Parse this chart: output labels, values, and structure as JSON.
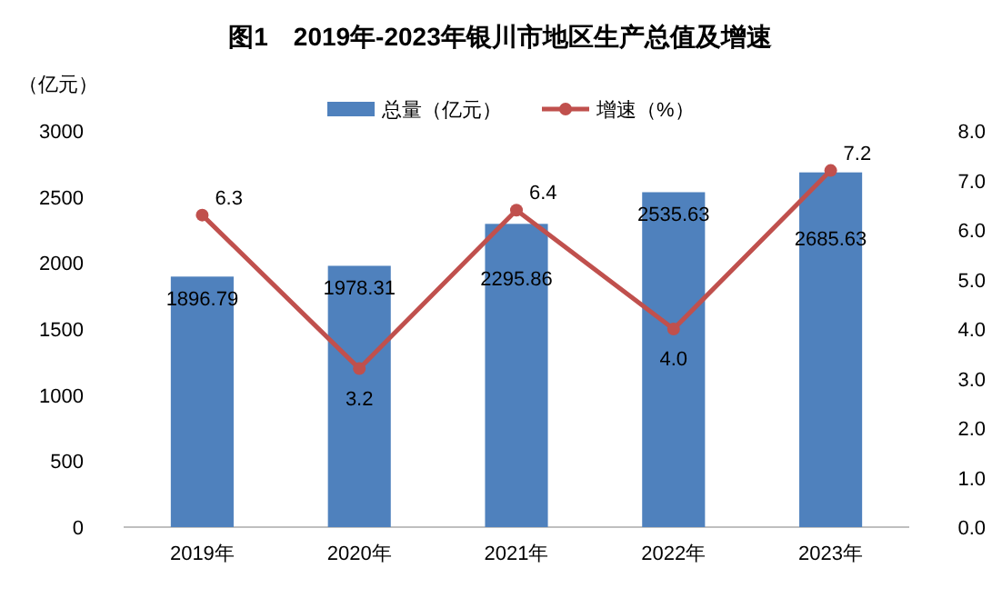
{
  "chart_data": {
    "type": "bar",
    "title": "图1　2019年-2023年银川市地区生产总值及增速",
    "ylabel": "（亿元）",
    "categories": [
      "2019年",
      "2020年",
      "2021年",
      "2022年",
      "2023年"
    ],
    "series": [
      {
        "name": "总量（亿元）",
        "color": "#4f81bd",
        "values": [
          1896.79,
          1978.31,
          2295.86,
          2535.63,
          2685.63
        ]
      },
      {
        "name": "增速（%）",
        "type": "line",
        "axis": "y2",
        "color": "#c0504d",
        "marker": "circle",
        "values": [
          6.3,
          3.2,
          6.4,
          4.0,
          7.2
        ],
        "value_labels": [
          "6.3",
          "3.2",
          "6.4",
          "4.0",
          "7.2"
        ]
      }
    ],
    "data_labels": true,
    "ylim": [
      0,
      3000
    ],
    "yticks": [
      0,
      500,
      1000,
      1500,
      2000,
      2500,
      3000
    ],
    "y2lim": [
      0,
      8
    ],
    "y2ticks": [
      {
        "value": 0,
        "label": "0.0"
      },
      {
        "value": 1,
        "label": "1.0"
      },
      {
        "value": 2,
        "label": "2.0"
      },
      {
        "value": 3,
        "label": "3.0"
      },
      {
        "value": 4,
        "label": "4.0"
      },
      {
        "value": 5,
        "label": "5.0"
      },
      {
        "value": 6,
        "label": "6.0"
      },
      {
        "value": 7,
        "label": "7.0"
      },
      {
        "value": 8,
        "label": "8.0"
      }
    ],
    "legend": "top",
    "grid": false
  }
}
